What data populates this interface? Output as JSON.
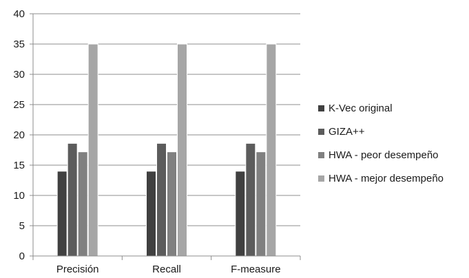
{
  "chart_data": {
    "type": "bar",
    "categories": [
      "Precisión",
      "Recall",
      "F-measure"
    ],
    "series": [
      {
        "name": "K-Vec original",
        "values": [
          14,
          14,
          14
        ],
        "color": "#404040"
      },
      {
        "name": "GIZA++",
        "values": [
          18.6,
          18.6,
          18.6
        ],
        "color": "#5c5c5c"
      },
      {
        "name": "HWA - peor desempeño",
        "values": [
          17.2,
          17.2,
          17.2
        ],
        "color": "#808080"
      },
      {
        "name": "HWA - mejor desempeño",
        "values": [
          35,
          35,
          35
        ],
        "color": "#a6a6a6"
      }
    ],
    "y_ticks": [
      "0",
      "5",
      "10",
      "15",
      "20",
      "25",
      "30",
      "35",
      "40"
    ],
    "ylim": [
      0,
      40
    ],
    "grid": true,
    "legend_position": "right"
  }
}
